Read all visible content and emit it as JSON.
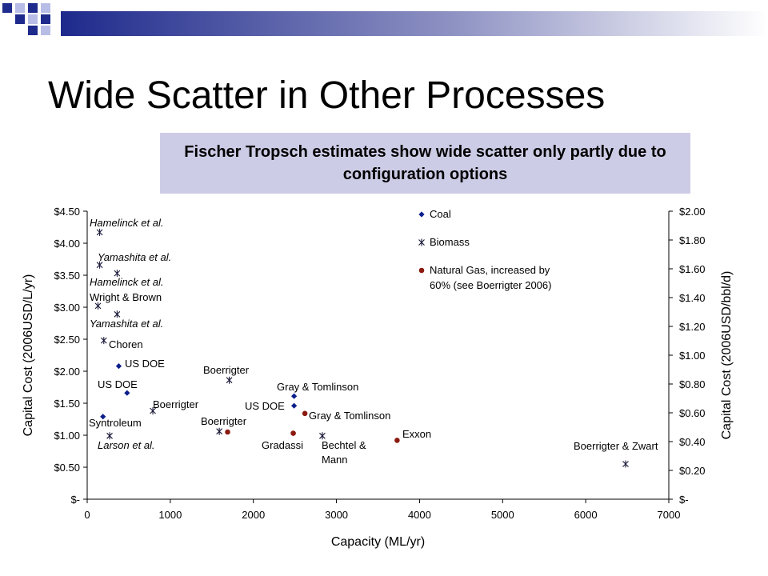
{
  "slide": {
    "title": "Wide Scatter in Other Processes",
    "callout": "Fischer Tropsch estimates show wide scatter only partly due to configuration options",
    "callout_bg": "#cccce6"
  },
  "chart_data": {
    "type": "scatter",
    "title": "",
    "xlabel": "Capacity (ML/yr)",
    "ylabel": "Capital Cost (2006USD/L/yr)",
    "y2label": "Capital Cost (2006USD/bbl/d)",
    "xlim": [
      0,
      7000
    ],
    "ylim": [
      0,
      4.5
    ],
    "y2lim": [
      0,
      2.0
    ],
    "xticks": [
      "0",
      "1000",
      "2000",
      "3000",
      "4000",
      "5000",
      "6000",
      "7000"
    ],
    "yticks": [
      "$-",
      "$0.50",
      "$1.00",
      "$1.50",
      "$2.00",
      "$2.50",
      "$3.00",
      "$3.50",
      "$4.00",
      "$4.50"
    ],
    "y2ticks": [
      "$-",
      "$0.20",
      "$0.40",
      "$0.60",
      "$0.80",
      "$1.00",
      "$1.20",
      "$1.40",
      "$1.60",
      "$1.80",
      "$2.00"
    ],
    "grid": false,
    "legend_position": "top-right",
    "series": [
      {
        "name": "Coal",
        "marker": "diamond",
        "color": "#0b1f8c",
        "points": [
          {
            "x": 190,
            "y": 1.29,
            "label": "Syntroleum"
          },
          {
            "x": 380,
            "y": 2.08,
            "label": "US DOE"
          },
          {
            "x": 480,
            "y": 1.66,
            "label": "US DOE"
          },
          {
            "x": 2490,
            "y": 1.61,
            "label": "Gray & Tomlinson"
          },
          {
            "x": 2490,
            "y": 1.46,
            "label": "US DOE"
          }
        ]
      },
      {
        "name": "Biomass",
        "marker": "asterisk",
        "color": "#1a1a3a",
        "points": [
          {
            "x": 150,
            "y": 4.17,
            "label": "Hamelinck et al."
          },
          {
            "x": 150,
            "y": 3.66,
            "label": "Yamashita et al."
          },
          {
            "x": 360,
            "y": 3.53,
            "label": "Hamelinck et al."
          },
          {
            "x": 130,
            "y": 3.02,
            "label": "Wright & Brown"
          },
          {
            "x": 360,
            "y": 2.89,
            "label": "Yamashita et al."
          },
          {
            "x": 200,
            "y": 2.48,
            "label": "Choren"
          },
          {
            "x": 270,
            "y": 0.99,
            "label": "Larson et al."
          },
          {
            "x": 790,
            "y": 1.38,
            "label": "Boerrigter"
          },
          {
            "x": 1710,
            "y": 1.86,
            "label": "Boerrigter"
          },
          {
            "x": 1590,
            "y": 1.06,
            "label": "Boerrigter"
          },
          {
            "x": 2830,
            "y": 0.99,
            "label": "Bechtel & Mann"
          },
          {
            "x": 6480,
            "y": 0.55,
            "label": "Boerrigter & Zwart"
          }
        ]
      },
      {
        "name": "Natural Gas, increased by 60% (see Boerrigter 2006)",
        "marker": "circle",
        "color": "#8b1a10",
        "points": [
          {
            "x": 1690,
            "y": 1.05,
            "label": ""
          },
          {
            "x": 2620,
            "y": 1.34,
            "label": "Gray & Tomlinson"
          },
          {
            "x": 2480,
            "y": 1.03,
            "label": "Gradassi"
          },
          {
            "x": 3730,
            "y": 0.92,
            "label": "Exxon"
          }
        ]
      }
    ],
    "legend": {
      "coal": "Coal",
      "biomass": "Biomass",
      "ng_line1": "Natural Gas, increased by",
      "ng_line2": "60% (see Boerrigter 2006)"
    },
    "annotations": [
      {
        "text": "Hamelinck et al.",
        "italic": true
      },
      {
        "text": "Yamashita et al.",
        "italic": true
      },
      {
        "text": "Hamelinck et al.",
        "italic": true
      },
      {
        "text": "Wright & Brown",
        "italic": false
      },
      {
        "text": "Yamashita et al.",
        "italic": true
      },
      {
        "text": "Choren",
        "italic": false
      },
      {
        "text": "US DOE",
        "italic": false
      },
      {
        "text": "US DOE",
        "italic": false
      },
      {
        "text": "Syntroleum",
        "italic": false
      },
      {
        "text": "Larson et al.",
        "italic": true
      },
      {
        "text": "Boerrigter",
        "italic": false
      },
      {
        "text": "Boerrigter",
        "italic": false
      },
      {
        "text": "Boerrigter",
        "italic": false
      },
      {
        "text": "Gray & Tomlinson",
        "italic": false
      },
      {
        "text": "US DOE",
        "italic": false
      },
      {
        "text": "Gray & Tomlinson",
        "italic": false
      },
      {
        "text": "Gradassi",
        "italic": false
      },
      {
        "text": "Bechtel &",
        "italic": false
      },
      {
        "text": "Mann",
        "italic": false
      },
      {
        "text": "Exxon",
        "italic": false
      },
      {
        "text": "Boerrigter & Zwart",
        "italic": false
      }
    ]
  }
}
